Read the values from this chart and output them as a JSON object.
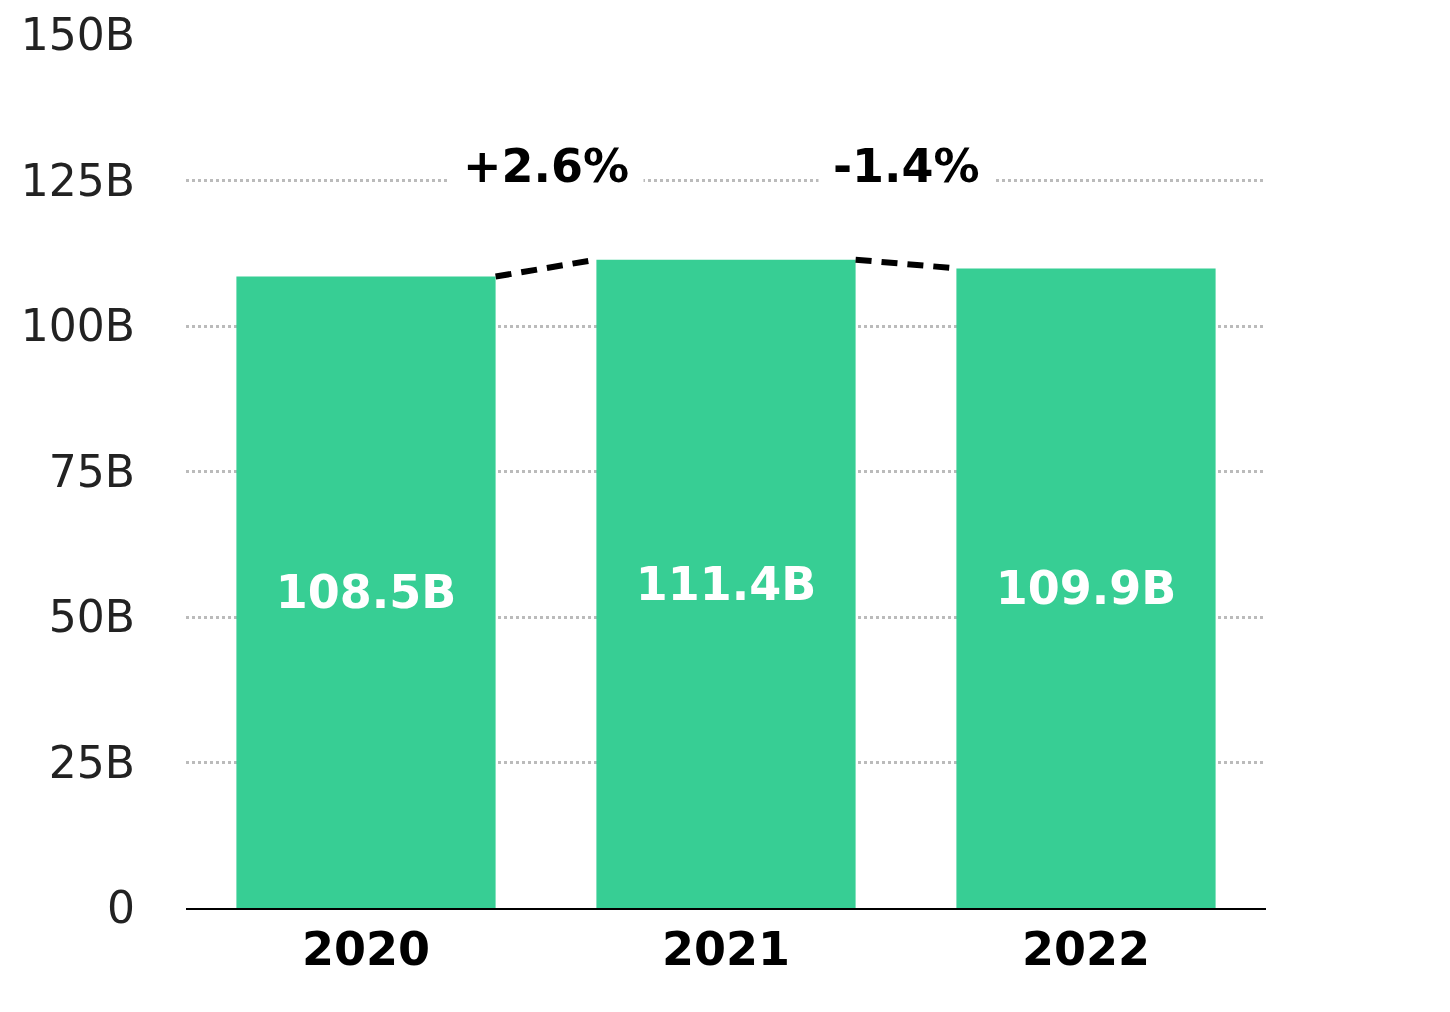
{
  "chart_data": {
    "type": "bar",
    "categories": [
      "2020",
      "2021",
      "2022"
    ],
    "values": [
      108.5,
      111.4,
      109.9
    ],
    "value_labels": [
      "108.5B",
      "111.4B",
      "109.9B"
    ],
    "color": "#37ce94",
    "ylim": [
      0,
      150
    ],
    "yticks": [
      {
        "value": 0,
        "label": "0"
      },
      {
        "value": 25,
        "label": "25B"
      },
      {
        "value": 50,
        "label": "50B"
      },
      {
        "value": 75,
        "label": "75B"
      },
      {
        "value": 100,
        "label": "100B"
      },
      {
        "value": 125,
        "label": "125B"
      },
      {
        "value": 150,
        "label": "150B"
      }
    ],
    "grid": "y",
    "annotations": [
      "+2.6%",
      "-1.4%"
    ]
  }
}
